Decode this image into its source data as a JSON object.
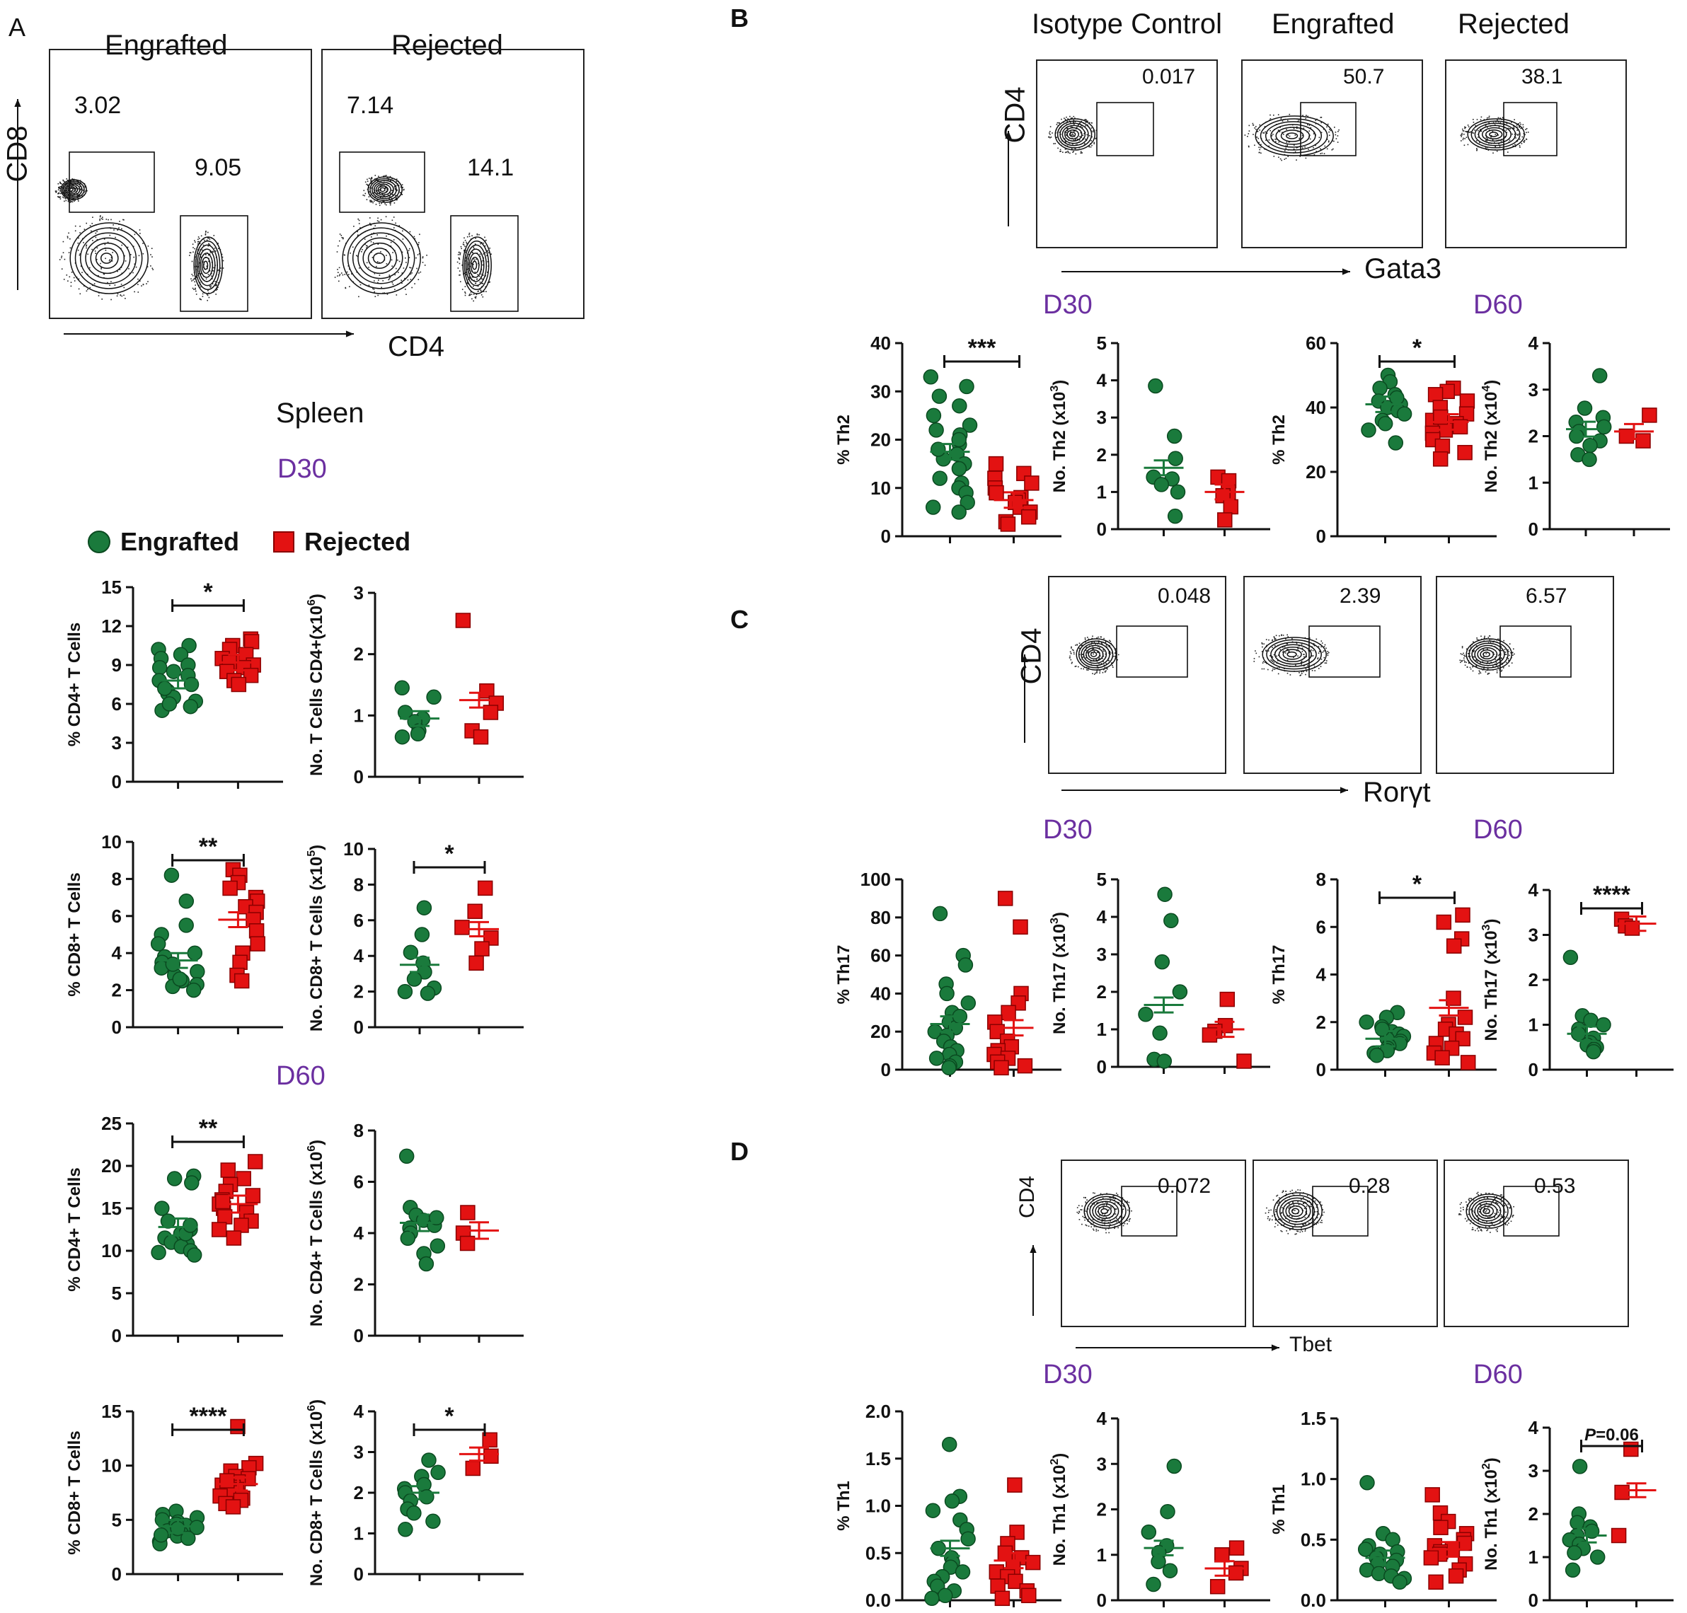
{
  "panels": {
    "A": "A",
    "B": "B",
    "C": "C",
    "D": "D"
  },
  "days": {
    "d30": "D30",
    "d60": "D60"
  },
  "spleen": "Spleen",
  "legend": {
    "engrafted": "Engrafted",
    "rejected": "Rejected"
  },
  "colors": {
    "engrafted": "#1a7a3c",
    "rejected": "#e31212",
    "day": "#6b2fa0"
  },
  "flow_headers": {
    "engrafted": "Engrafted",
    "rejected": "Rejected",
    "isotype": "Isotype Control"
  },
  "flow_axes": {
    "cd8": "CD8",
    "cd4": "CD4",
    "gata3": "Gata3",
    "roryt": "Rorγt",
    "tbet": "Tbet"
  },
  "flow_values": {
    "A": {
      "engrafted_cd8": "3.02",
      "engrafted_cd4": "9.05",
      "rejected_cd8": "7.14",
      "rejected_cd4": "14.1"
    },
    "B": [
      "0.017",
      "50.7",
      "38.1"
    ],
    "C": [
      "0.048",
      "2.39",
      "6.57"
    ],
    "D": [
      "0.072",
      "0.28",
      "0.53"
    ]
  },
  "chart_data": [
    {
      "id": "a1",
      "type": "scatter",
      "day": "D30",
      "ylabel": "% CD4+ T Cells",
      "ylim": [
        0,
        15
      ],
      "yticks": [
        "0",
        "3",
        "6",
        "9",
        "12",
        "15"
      ],
      "sig": "*",
      "series": [
        {
          "name": "Engrafted",
          "values": [
            10.5,
            10.2,
            9.8,
            9.5,
            9.0,
            8.8,
            8.2,
            7.8,
            7.5,
            7.0,
            6.8,
            6.5,
            6.2,
            5.8,
            5.5,
            6.0,
            7.2,
            8.5
          ],
          "mean": 7.8
        },
        {
          "name": "Rejected",
          "values": [
            11.0,
            10.8,
            10.5,
            10.2,
            9.8,
            9.5,
            9.2,
            9.0,
            8.8,
            8.5,
            8.2,
            7.8,
            7.5
          ],
          "mean": 9.2
        }
      ]
    },
    {
      "id": "a2",
      "type": "scatter",
      "day": "D30",
      "ylabel": "No. T Cells CD4+(x10^6)",
      "ylim": [
        0,
        3
      ],
      "yticks": [
        "0",
        "1",
        "2",
        "3"
      ],
      "sig": "",
      "series": [
        {
          "name": "Engrafted",
          "values": [
            1.45,
            1.3,
            1.05,
            0.95,
            0.9,
            0.75,
            0.7,
            0.65
          ],
          "mean": 0.95
        },
        {
          "name": "Rejected",
          "values": [
            2.55,
            1.4,
            1.2,
            1.05,
            0.75,
            0.65
          ],
          "mean": 1.25
        }
      ]
    },
    {
      "id": "a3",
      "type": "scatter",
      "day": "D30",
      "ylabel": "% CD8+ T Cells",
      "ylim": [
        0,
        10
      ],
      "yticks": [
        "0",
        "2",
        "4",
        "6",
        "8",
        "10"
      ],
      "sig": "**",
      "series": [
        {
          "name": "Engrafted",
          "values": [
            8.2,
            6.8,
            5.5,
            5.0,
            4.5,
            4.0,
            3.8,
            3.5,
            3.2,
            3.0,
            2.8,
            2.5,
            2.3,
            2.2,
            2.0,
            2.6,
            3.4
          ],
          "mean": 3.6
        },
        {
          "name": "Rejected",
          "values": [
            8.5,
            8.2,
            7.8,
            7.5,
            7.0,
            6.8,
            6.5,
            6.2,
            5.8,
            5.2,
            4.5,
            4.0,
            3.5,
            2.8,
            2.5
          ],
          "mean": 5.8
        }
      ]
    },
    {
      "id": "a4",
      "type": "scatter",
      "day": "D30",
      "ylabel": "No. CD8+ T Cells (x10^5)",
      "ylim": [
        0,
        10
      ],
      "yticks": [
        "0",
        "2",
        "4",
        "6",
        "8",
        "10"
      ],
      "sig": "*",
      "series": [
        {
          "name": "Engrafted",
          "values": [
            6.7,
            5.2,
            4.2,
            3.6,
            3.1,
            2.7,
            2.2,
            2.0,
            1.9
          ],
          "mean": 3.5
        },
        {
          "name": "Rejected",
          "values": [
            7.8,
            6.5,
            5.6,
            5.0,
            4.4,
            3.6
          ],
          "mean": 5.5
        }
      ]
    },
    {
      "id": "a5",
      "type": "scatter",
      "day": "D60",
      "ylabel": "% CD4+ T Cells",
      "ylim": [
        0,
        25
      ],
      "yticks": [
        "0",
        "5",
        "10",
        "15",
        "20",
        "25"
      ],
      "sig": "**",
      "series": [
        {
          "name": "Engrafted",
          "values": [
            18.8,
            18.5,
            18.0,
            15.0,
            13.5,
            12.5,
            12.0,
            11.5,
            11.0,
            10.8,
            10.5,
            10.0,
            9.8,
            9.5,
            12.0,
            13.0
          ],
          "mean": 12.8
        },
        {
          "name": "Rejected",
          "values": [
            20.5,
            19.5,
            18.5,
            17.8,
            17.0,
            16.5,
            16.0,
            15.5,
            15.0,
            14.5,
            14.0,
            13.5,
            13.0,
            12.5,
            11.5,
            15.8
          ],
          "mean": 15.5
        }
      ]
    },
    {
      "id": "a6",
      "type": "scatter",
      "day": "D60",
      "ylabel": "No. CD4+ T Cells (x10^6)",
      "ylim": [
        0,
        8
      ],
      "yticks": [
        "0",
        "2",
        "4",
        "6",
        "8"
      ],
      "sig": "",
      "series": [
        {
          "name": "Engrafted",
          "values": [
            7.0,
            5.0,
            4.7,
            4.5,
            4.3,
            4.2,
            4.0,
            3.8,
            3.5,
            3.2,
            2.8,
            4.6
          ],
          "mean": 4.4
        },
        {
          "name": "Rejected",
          "values": [
            4.8,
            4.0,
            3.6
          ],
          "mean": 4.1
        }
      ]
    },
    {
      "id": "a7",
      "type": "scatter",
      "day": "D60",
      "ylabel": "% CD8+ T Cells",
      "ylim": [
        0,
        15
      ],
      "yticks": [
        "0",
        "5",
        "10",
        "15"
      ],
      "sig": "****",
      "series": [
        {
          "name": "Engrafted",
          "values": [
            5.8,
            5.5,
            5.2,
            5.0,
            4.8,
            4.5,
            4.3,
            4.0,
            3.8,
            3.5,
            3.3,
            3.0,
            2.8,
            4.6,
            4.2,
            3.6
          ],
          "mean": 4.4
        },
        {
          "name": "Rejected",
          "values": [
            13.6,
            10.2,
            9.8,
            9.5,
            9.0,
            8.8,
            8.5,
            8.2,
            8.0,
            7.8,
            7.5,
            7.2,
            7.0,
            6.8,
            6.5,
            6.2,
            8.6
          ],
          "mean": 8.3
        }
      ]
    },
    {
      "id": "a8",
      "type": "scatter",
      "day": "D60",
      "ylabel": "No. CD8+ T Cells (x10^6)",
      "ylim": [
        0,
        4
      ],
      "yticks": [
        "0",
        "1",
        "2",
        "3",
        "4"
      ],
      "sig": "*",
      "series": [
        {
          "name": "Engrafted",
          "values": [
            2.8,
            2.5,
            2.4,
            2.2,
            2.1,
            2.0,
            1.9,
            1.8,
            1.6,
            1.5,
            1.3,
            1.1
          ],
          "mean": 2.0
        },
        {
          "name": "Rejected",
          "values": [
            3.3,
            2.9,
            2.6
          ],
          "mean": 2.95
        }
      ]
    },
    {
      "id": "b1",
      "type": "scatter",
      "day": "D30",
      "ylabel": "% Th2",
      "ylim": [
        0,
        40
      ],
      "yticks": [
        "0",
        "10",
        "20",
        "30",
        "40"
      ],
      "sig": "***",
      "series": [
        {
          "name": "Engrafted",
          "values": [
            33,
            31,
            29,
            27,
            25,
            23,
            22,
            21,
            19,
            17,
            16,
            15,
            14,
            12,
            11,
            10,
            9,
            7,
            6,
            5,
            20,
            18
          ],
          "mean": 17.5
        },
        {
          "name": "Rejected",
          "values": [
            15,
            13,
            12,
            11,
            10,
            9,
            8,
            7.5,
            7,
            6,
            5,
            4,
            3,
            2.5
          ],
          "mean": 7.5
        }
      ]
    },
    {
      "id": "b2",
      "type": "scatter",
      "day": "D30",
      "ylabel": "No. Th2 (x10^3)",
      "ylim": [
        0,
        5
      ],
      "yticks": [
        "0",
        "1",
        "2",
        "3",
        "4",
        "5"
      ],
      "sig": "",
      "series": [
        {
          "name": "Engrafted",
          "values": [
            3.85,
            2.5,
            1.9,
            1.4,
            1.35,
            1.2,
            1.0,
            0.35
          ],
          "mean": 1.65
        },
        {
          "name": "Rejected",
          "values": [
            1.4,
            1.3,
            1.0,
            0.9,
            0.6,
            0.25
          ],
          "mean": 1.0
        }
      ]
    },
    {
      "id": "b3",
      "type": "scatter",
      "day": "D60",
      "ylabel": "% Th2",
      "ylim": [
        0,
        60
      ],
      "yticks": [
        "0",
        "20",
        "40",
        "60"
      ],
      "sig": "*",
      "series": [
        {
          "name": "Engrafted",
          "values": [
            50,
            48,
            46,
            44,
            42,
            41,
            40,
            39,
            38,
            36,
            35,
            33,
            29,
            43
          ],
          "mean": 41
        },
        {
          "name": "Rejected",
          "values": [
            46,
            45,
            44,
            42,
            40,
            38,
            36,
            35,
            34,
            33,
            32,
            30,
            28,
            26,
            24,
            37
          ],
          "mean": 35.5
        }
      ]
    },
    {
      "id": "b4",
      "type": "scatter",
      "day": "D60",
      "ylabel": "No. Th2 (x10^4)",
      "ylim": [
        0,
        4
      ],
      "yticks": [
        "0",
        "1",
        "2",
        "3",
        "4"
      ],
      "sig": "",
      "series": [
        {
          "name": "Engrafted",
          "values": [
            3.3,
            2.6,
            2.4,
            2.3,
            2.2,
            2.1,
            2.0,
            1.9,
            1.8,
            1.6,
            1.5
          ],
          "mean": 2.15
        },
        {
          "name": "Rejected",
          "values": [
            2.45,
            2.0,
            1.9
          ],
          "mean": 2.1
        }
      ]
    },
    {
      "id": "c1",
      "type": "scatter",
      "day": "D30",
      "ylabel": "% Th17",
      "ylim": [
        0,
        100
      ],
      "yticks": [
        "0",
        "20",
        "40",
        "60",
        "80",
        "100"
      ],
      "sig": "",
      "series": [
        {
          "name": "Engrafted",
          "values": [
            82,
            60,
            55,
            45,
            40,
            35,
            30,
            25,
            22,
            20,
            18,
            15,
            12,
            10,
            8,
            6,
            4,
            2,
            1,
            28
          ],
          "mean": 24
        },
        {
          "name": "Rejected",
          "values": [
            90,
            75,
            40,
            35,
            30,
            25,
            20,
            15,
            12,
            10,
            8,
            6,
            4,
            2,
            1
          ],
          "mean": 22
        }
      ]
    },
    {
      "id": "c2",
      "type": "scatter",
      "day": "D30",
      "ylabel": "No. Th17 (x10^3)",
      "ylim": [
        0,
        5
      ],
      "yticks": [
        "0",
        "1",
        "2",
        "3",
        "4",
        "5"
      ],
      "sig": "",
      "series": [
        {
          "name": "Engrafted",
          "values": [
            4.6,
            3.9,
            2.8,
            2.0,
            1.4,
            0.9,
            0.2,
            0.15
          ],
          "mean": 1.65
        },
        {
          "name": "Rejected",
          "values": [
            1.8,
            1.1,
            0.95,
            0.85,
            0.15
          ],
          "mean": 1.0
        }
      ]
    },
    {
      "id": "c3",
      "type": "scatter",
      "day": "D60",
      "ylabel": "% Th17",
      "ylim": [
        0,
        8
      ],
      "yticks": [
        "0",
        "2",
        "4",
        "6",
        "8"
      ],
      "sig": "*",
      "series": [
        {
          "name": "Engrafted",
          "values": [
            2.4,
            2.2,
            2.0,
            1.8,
            1.6,
            1.5,
            1.4,
            1.3,
            1.2,
            1.1,
            1.0,
            0.9,
            0.8,
            0.7,
            0.6,
            1.7
          ],
          "mean": 1.3
        },
        {
          "name": "Rejected",
          "values": [
            6.5,
            6.2,
            5.5,
            5.2,
            3.0,
            2.2,
            1.9,
            1.7,
            1.5,
            1.3,
            1.1,
            0.9,
            0.7,
            0.5,
            0.3
          ],
          "mean": 2.6
        }
      ]
    },
    {
      "id": "c4",
      "type": "scatter",
      "day": "D60",
      "ylabel": "No. Th17 (x10^3)",
      "ylim": [
        0,
        4
      ],
      "yticks": [
        "0",
        "1",
        "2",
        "3",
        "4"
      ],
      "sig": "****",
      "series": [
        {
          "name": "Engrafted",
          "values": [
            2.5,
            1.2,
            1.1,
            1.0,
            0.9,
            0.8,
            0.7,
            0.6,
            0.55,
            0.5,
            0.45,
            0.4
          ],
          "mean": 0.8
        },
        {
          "name": "Rejected",
          "values": [
            3.35,
            3.2,
            3.15
          ],
          "mean": 3.25
        }
      ]
    },
    {
      "id": "d1",
      "type": "scatter",
      "day": "D30",
      "ylabel": "% Th1",
      "ylim": [
        0,
        2
      ],
      "yticks": [
        "0.0",
        "0.5",
        "1.0",
        "1.5",
        "2.0"
      ],
      "sig": "",
      "series": [
        {
          "name": "Engrafted",
          "values": [
            1.65,
            1.1,
            1.05,
            0.95,
            0.85,
            0.75,
            0.65,
            0.55,
            0.45,
            0.4,
            0.35,
            0.3,
            0.25,
            0.2,
            0.15,
            0.1,
            0.05,
            0.02
          ],
          "mean": 0.55
        },
        {
          "name": "Rejected",
          "values": [
            1.22,
            0.72,
            0.6,
            0.5,
            0.45,
            0.4,
            0.35,
            0.3,
            0.25,
            0.2,
            0.15,
            0.1,
            0.05,
            0.02
          ],
          "mean": 0.42
        }
      ]
    },
    {
      "id": "d2",
      "type": "scatter",
      "day": "D30",
      "ylabel": "No. Th1 (x10^2)",
      "ylim": [
        0,
        4
      ],
      "yticks": [
        "0",
        "1",
        "2",
        "3",
        "4"
      ],
      "sig": "",
      "series": [
        {
          "name": "Engrafted",
          "values": [
            2.95,
            1.95,
            1.5,
            1.2,
            1.05,
            0.85,
            0.65,
            0.35
          ],
          "mean": 1.15
        },
        {
          "name": "Rejected",
          "values": [
            1.15,
            1.0,
            0.7,
            0.6,
            0.3
          ],
          "mean": 0.7
        }
      ]
    },
    {
      "id": "d3",
      "type": "scatter",
      "day": "D60",
      "ylabel": "% Th1",
      "ylim": [
        0,
        1.5
      ],
      "yticks": [
        "0.0",
        "0.5",
        "1.0",
        "1.5"
      ],
      "sig": "",
      "series": [
        {
          "name": "Engrafted",
          "values": [
            0.97,
            0.55,
            0.5,
            0.45,
            0.42,
            0.4,
            0.38,
            0.35,
            0.33,
            0.3,
            0.28,
            0.25,
            0.22,
            0.2,
            0.18,
            0.15
          ],
          "mean": 0.35
        },
        {
          "name": "Rejected",
          "values": [
            0.87,
            0.72,
            0.65,
            0.6,
            0.55,
            0.5,
            0.47,
            0.45,
            0.42,
            0.4,
            0.38,
            0.35,
            0.3,
            0.25,
            0.2,
            0.15
          ],
          "mean": 0.42
        }
      ]
    },
    {
      "id": "d4",
      "type": "scatter",
      "day": "D60",
      "ylabel": "No. Th1 (x10^2)",
      "ylim": [
        0,
        4
      ],
      "yticks": [
        "0",
        "1",
        "2",
        "3",
        "4"
      ],
      "sig": "P=0.06",
      "series": [
        {
          "name": "Engrafted",
          "values": [
            3.1,
            2.0,
            1.8,
            1.7,
            1.6,
            1.5,
            1.4,
            1.3,
            1.2,
            1.1,
            1.0,
            0.7
          ],
          "mean": 1.5
        },
        {
          "name": "Rejected",
          "values": [
            3.5,
            2.5,
            1.5
          ],
          "mean": 2.55
        }
      ]
    }
  ]
}
